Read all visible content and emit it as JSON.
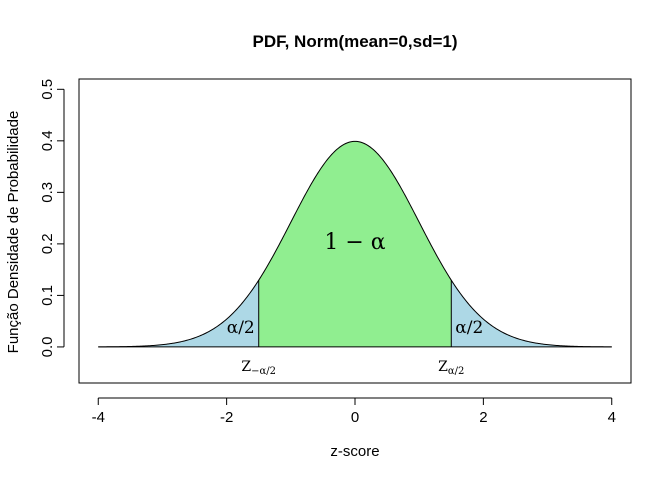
{
  "chart_data": {
    "type": "area",
    "title": "PDF, Norm(mean=0,sd=1)",
    "xlabel": "z-score",
    "ylabel": "Função Densidade de Probabilidade",
    "xlim": [
      -4.3,
      4.3
    ],
    "ylim": [
      -0.07,
      0.52
    ],
    "x_ticks": [
      -4,
      -2,
      0,
      2,
      4
    ],
    "x_tick_labels": [
      "-4",
      "-2",
      "0",
      "2",
      "4"
    ],
    "y_ticks": [
      0.0,
      0.1,
      0.2,
      0.3,
      0.4,
      0.5
    ],
    "y_tick_labels": [
      "0.0",
      "0.1",
      "0.2",
      "0.3",
      "0.4",
      "0.5"
    ],
    "curve": {
      "distribution": "normal",
      "mean": 0,
      "sd": 1,
      "x_range": [
        -4,
        4
      ]
    },
    "critical_value": 1.5,
    "regions": [
      {
        "name": "left tail",
        "x_range": [
          -4,
          -1.5
        ],
        "color": "#add8e6"
      },
      {
        "name": "center",
        "x_range": [
          -1.5,
          1.5
        ],
        "color": "#90ee90"
      },
      {
        "name": "right tail",
        "x_range": [
          1.5,
          4
        ],
        "color": "#add8e6"
      }
    ],
    "annotations": {
      "center_label": "1 − α",
      "tail_label": "α/2",
      "left_z_label": "Z",
      "left_z_sub": "−α/2",
      "right_z_label": "Z",
      "right_z_sub": "α/2"
    },
    "grid": false,
    "legend": "none"
  }
}
